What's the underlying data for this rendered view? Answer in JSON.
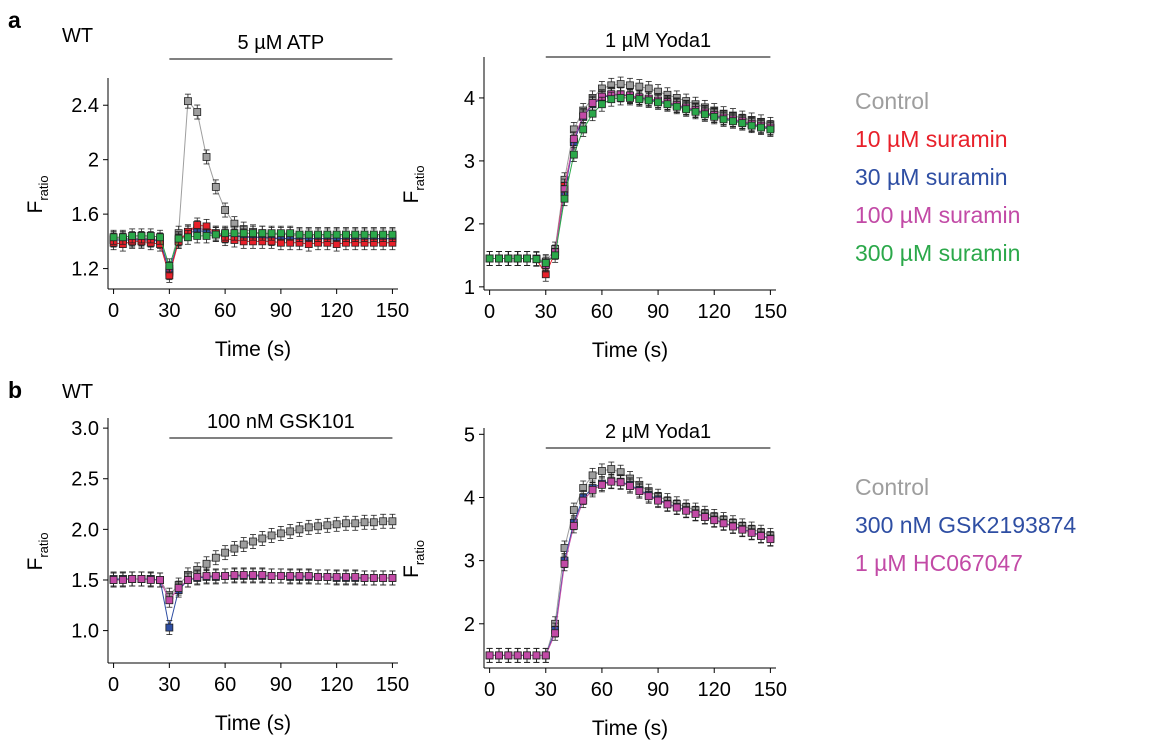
{
  "figure": {
    "panel_a": "a",
    "panel_b": "b",
    "wt_a": "WT",
    "wt_b": "WT"
  },
  "colors": {
    "Control": "#9e9e9e",
    "10 µM suramin": "#e8202a",
    "30 µM suramin": "#2e4ea3",
    "100 µM suramin": "#c24aa6",
    "300 µM suramin": "#2ba84a",
    "300 nM GSK2193874": "#2e4ea3",
    "1 µM HC067047": "#c24aa6"
  },
  "legend_a": [
    "Control",
    "10 µM suramin",
    "30 µM suramin",
    "100 µM suramin",
    "300 µM suramin"
  ],
  "legend_b": [
    "Control",
    "300 nM GSK2193874",
    "1 µM HC067047"
  ],
  "chart_data": [
    {
      "type": "scatter",
      "condition": "5 µM ATP",
      "xlabel": "Time (s)",
      "ylabel_main": "F",
      "ylabel_sub": "ratio",
      "xlim": [
        -3,
        153
      ],
      "ylim": [
        1.05,
        2.6
      ],
      "xticks": [
        0,
        30,
        60,
        90,
        120,
        150
      ],
      "yticks": [
        1.2,
        1.6,
        2.0,
        2.4
      ],
      "bar_range": [
        30,
        150
      ],
      "x": [
        0,
        5,
        10,
        15,
        20,
        25,
        30,
        35,
        40,
        45,
        50,
        55,
        60,
        65,
        70,
        75,
        80,
        85,
        90,
        95,
        100,
        105,
        110,
        115,
        120,
        125,
        130,
        135,
        140,
        145,
        150
      ],
      "series": [
        {
          "name": "Control",
          "values": [
            1.42,
            1.42,
            1.42,
            1.42,
            1.42,
            1.41,
            1.2,
            1.46,
            2.43,
            2.35,
            2.02,
            1.8,
            1.63,
            1.53,
            1.49,
            1.47,
            1.46,
            1.45,
            1.45,
            1.45,
            1.44,
            1.44,
            1.44,
            1.44,
            1.44,
            1.44,
            1.44,
            1.44,
            1.44,
            1.44,
            1.44
          ]
        },
        {
          "name": "100 µM suramin",
          "values": [
            1.41,
            1.41,
            1.41,
            1.42,
            1.41,
            1.41,
            1.17,
            1.4,
            1.47,
            1.5,
            1.48,
            1.46,
            1.45,
            1.44,
            1.44,
            1.43,
            1.43,
            1.43,
            1.42,
            1.42,
            1.42,
            1.42,
            1.42,
            1.42,
            1.42,
            1.42,
            1.42,
            1.42,
            1.42,
            1.42,
            1.42
          ]
        },
        {
          "name": "30 µM suramin",
          "values": [
            1.41,
            1.41,
            1.41,
            1.41,
            1.41,
            1.4,
            1.18,
            1.41,
            1.46,
            1.48,
            1.47,
            1.45,
            1.44,
            1.44,
            1.43,
            1.43,
            1.43,
            1.42,
            1.42,
            1.42,
            1.42,
            1.42,
            1.42,
            1.42,
            1.42,
            1.42,
            1.42,
            1.42,
            1.42,
            1.42,
            1.42
          ]
        },
        {
          "name": "10 µM suramin",
          "values": [
            1.39,
            1.38,
            1.4,
            1.4,
            1.39,
            1.38,
            1.15,
            1.4,
            1.47,
            1.52,
            1.51,
            1.46,
            1.42,
            1.41,
            1.4,
            1.4,
            1.4,
            1.4,
            1.39,
            1.39,
            1.39,
            1.38,
            1.39,
            1.39,
            1.38,
            1.39,
            1.39,
            1.39,
            1.39,
            1.39,
            1.39
          ]
        },
        {
          "name": "300 µM suramin",
          "values": [
            1.43,
            1.43,
            1.44,
            1.44,
            1.44,
            1.43,
            1.22,
            1.42,
            1.43,
            1.44,
            1.44,
            1.45,
            1.46,
            1.46,
            1.46,
            1.46,
            1.46,
            1.46,
            1.46,
            1.46,
            1.45,
            1.45,
            1.45,
            1.45,
            1.45,
            1.45,
            1.45,
            1.45,
            1.45,
            1.45,
            1.45
          ]
        }
      ]
    },
    {
      "type": "scatter",
      "condition": "1 µM Yoda1",
      "xlabel": "Time (s)",
      "ylabel_main": "F",
      "ylabel_sub": "ratio",
      "xlim": [
        -3,
        153
      ],
      "ylim": [
        0.95,
        4.65
      ],
      "xticks": [
        0,
        30,
        60,
        90,
        120,
        150
      ],
      "yticks": [
        1,
        2,
        3,
        4
      ],
      "bar_range": [
        30,
        150
      ],
      "x": [
        0,
        5,
        10,
        15,
        20,
        25,
        30,
        35,
        40,
        45,
        50,
        55,
        60,
        65,
        70,
        75,
        80,
        85,
        90,
        95,
        100,
        105,
        110,
        115,
        120,
        125,
        130,
        135,
        140,
        145,
        150
      ],
      "series": [
        {
          "name": "Control",
          "values": [
            1.45,
            1.45,
            1.45,
            1.45,
            1.45,
            1.45,
            1.4,
            1.6,
            2.7,
            3.5,
            3.8,
            4.0,
            4.15,
            4.2,
            4.22,
            4.2,
            4.18,
            4.15,
            4.1,
            4.05,
            4.0,
            3.95,
            3.9,
            3.85,
            3.8,
            3.75,
            3.72,
            3.68,
            3.65,
            3.62,
            3.58
          ]
        },
        {
          "name": "10 µM suramin",
          "values": [
            1.45,
            1.45,
            1.45,
            1.45,
            1.45,
            1.44,
            1.2,
            1.55,
            2.6,
            3.3,
            3.7,
            3.9,
            4.0,
            4.05,
            4.05,
            4.02,
            4.0,
            3.98,
            3.95,
            3.92,
            3.88,
            3.84,
            3.8,
            3.76,
            3.72,
            3.68,
            3.65,
            3.62,
            3.58,
            3.55,
            3.52
          ]
        },
        {
          "name": "30 µM suramin",
          "values": [
            1.45,
            1.45,
            1.45,
            1.45,
            1.45,
            1.44,
            1.35,
            1.55,
            2.5,
            3.3,
            3.7,
            3.9,
            4.0,
            4.05,
            4.05,
            4.03,
            4.0,
            3.98,
            3.95,
            3.92,
            3.88,
            3.84,
            3.8,
            3.76,
            3.72,
            3.68,
            3.65,
            3.62,
            3.58,
            3.55,
            3.52
          ]
        },
        {
          "name": "100 µM suramin",
          "values": [
            1.45,
            1.45,
            1.45,
            1.45,
            1.45,
            1.44,
            1.35,
            1.55,
            2.55,
            3.35,
            3.72,
            3.92,
            4.02,
            4.06,
            4.06,
            4.04,
            4.01,
            3.99,
            3.96,
            3.93,
            3.89,
            3.85,
            3.81,
            3.77,
            3.73,
            3.69,
            3.66,
            3.63,
            3.59,
            3.56,
            3.53
          ]
        },
        {
          "name": "300 µM suramin",
          "values": [
            1.45,
            1.45,
            1.45,
            1.45,
            1.45,
            1.44,
            1.38,
            1.5,
            2.4,
            3.1,
            3.5,
            3.75,
            3.9,
            3.98,
            4.0,
            4.0,
            3.98,
            3.96,
            3.93,
            3.9,
            3.86,
            3.82,
            3.78,
            3.74,
            3.7,
            3.66,
            3.63,
            3.6,
            3.56,
            3.53,
            3.5
          ]
        }
      ]
    },
    {
      "type": "scatter",
      "condition": "100 nM GSK101",
      "xlabel": "Time (s)",
      "ylabel_main": "F",
      "ylabel_sub": "ratio",
      "xlim": [
        -3,
        153
      ],
      "ylim": [
        0.68,
        3.1
      ],
      "xticks": [
        0,
        30,
        60,
        90,
        120,
        150
      ],
      "yticks": [
        1.0,
        1.5,
        2.0,
        2.5,
        3.0
      ],
      "ytick_decimals": 1,
      "bar_range": [
        30,
        150
      ],
      "x": [
        0,
        5,
        10,
        15,
        20,
        25,
        30,
        35,
        40,
        45,
        50,
        55,
        60,
        65,
        70,
        75,
        80,
        85,
        90,
        95,
        100,
        105,
        110,
        115,
        120,
        125,
        130,
        135,
        140,
        145,
        150
      ],
      "series": [
        {
          "name": "Control",
          "values": [
            1.5,
            1.51,
            1.51,
            1.51,
            1.51,
            1.5,
            1.35,
            1.45,
            1.55,
            1.6,
            1.66,
            1.72,
            1.77,
            1.81,
            1.85,
            1.88,
            1.91,
            1.94,
            1.96,
            1.98,
            2.0,
            2.02,
            2.03,
            2.04,
            2.05,
            2.06,
            2.06,
            2.07,
            2.07,
            2.08,
            2.08
          ]
        },
        {
          "name": "300 nM GSK2193874",
          "values": [
            1.51,
            1.51,
            1.51,
            1.51,
            1.51,
            1.5,
            1.03,
            1.4,
            1.5,
            1.52,
            1.53,
            1.53,
            1.54,
            1.54,
            1.54,
            1.54,
            1.54,
            1.54,
            1.54,
            1.53,
            1.53,
            1.53,
            1.53,
            1.53,
            1.52,
            1.52,
            1.52,
            1.52,
            1.52,
            1.52,
            1.52
          ]
        },
        {
          "name": "1 µM HC067047",
          "values": [
            1.5,
            1.5,
            1.51,
            1.51,
            1.5,
            1.5,
            1.3,
            1.42,
            1.5,
            1.53,
            1.54,
            1.54,
            1.54,
            1.55,
            1.55,
            1.55,
            1.55,
            1.54,
            1.54,
            1.54,
            1.54,
            1.54,
            1.53,
            1.53,
            1.53,
            1.53,
            1.53,
            1.52,
            1.52,
            1.52,
            1.52
          ]
        }
      ]
    },
    {
      "type": "scatter",
      "condition": "2 µM Yoda1",
      "xlabel": "Time (s)",
      "ylabel_main": "F",
      "ylabel_sub": "ratio",
      "xlim": [
        -3,
        153
      ],
      "ylim": [
        1.3,
        5.1
      ],
      "xticks": [
        0,
        30,
        60,
        90,
        120,
        150
      ],
      "yticks": [
        2,
        3,
        4,
        5
      ],
      "bar_range": [
        30,
        150
      ],
      "x": [
        0,
        5,
        10,
        15,
        20,
        25,
        30,
        35,
        40,
        45,
        50,
        55,
        60,
        65,
        70,
        75,
        80,
        85,
        90,
        95,
        100,
        105,
        110,
        115,
        120,
        125,
        130,
        135,
        140,
        145,
        150
      ],
      "series": [
        {
          "name": "Control",
          "values": [
            1.5,
            1.5,
            1.5,
            1.5,
            1.5,
            1.5,
            1.5,
            2.0,
            3.2,
            3.8,
            4.15,
            4.35,
            4.42,
            4.45,
            4.4,
            4.3,
            4.2,
            4.1,
            4.02,
            3.95,
            3.9,
            3.85,
            3.8,
            3.75,
            3.7,
            3.65,
            3.6,
            3.55,
            3.5,
            3.45,
            3.4
          ]
        },
        {
          "name": "300 nM GSK2193874",
          "values": [
            1.5,
            1.5,
            1.5,
            1.5,
            1.5,
            1.5,
            1.5,
            1.9,
            3.0,
            3.6,
            4.0,
            4.15,
            4.22,
            4.26,
            4.25,
            4.2,
            4.12,
            4.04,
            3.97,
            3.9,
            3.85,
            3.8,
            3.75,
            3.7,
            3.65,
            3.6,
            3.55,
            3.5,
            3.45,
            3.4,
            3.35
          ]
        },
        {
          "name": "1 µM HC067047",
          "values": [
            1.5,
            1.5,
            1.5,
            1.5,
            1.5,
            1.5,
            1.5,
            1.85,
            2.95,
            3.55,
            3.95,
            4.12,
            4.2,
            4.25,
            4.24,
            4.18,
            4.1,
            4.02,
            3.95,
            3.89,
            3.84,
            3.79,
            3.74,
            3.69,
            3.64,
            3.59,
            3.54,
            3.49,
            3.44,
            3.39,
            3.34
          ]
        }
      ]
    }
  ]
}
